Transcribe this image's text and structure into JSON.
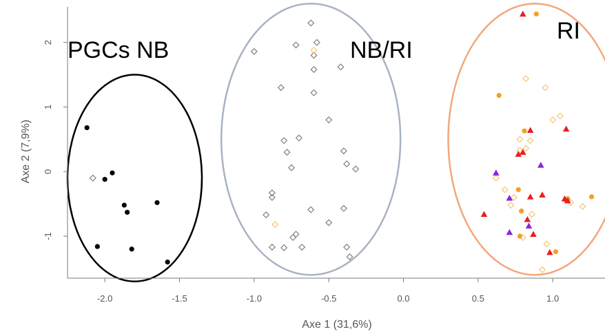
{
  "chart_data": {
    "type": "scatter",
    "xlabel": "Axe 1 (31,6%)",
    "ylabel": "Axe 2 (7,9%)",
    "xlim": [
      -2.25,
      1.35
    ],
    "ylim": [
      -1.65,
      2.55
    ],
    "x_ticks": [
      {
        "value": -2.0,
        "label": "-2.0"
      },
      {
        "value": -1.5,
        "label": "-1.5"
      },
      {
        "value": -1.0,
        "label": "-1.0"
      },
      {
        "value": -0.5,
        "label": "-0.5"
      },
      {
        "value": 0.0,
        "label": "0.0"
      },
      {
        "value": 0.5,
        "label": "0.5"
      },
      {
        "value": 1.0,
        "label": "1.0"
      }
    ],
    "y_ticks": [
      {
        "value": 2,
        "label": "2"
      },
      {
        "value": 1,
        "label": "1"
      },
      {
        "value": 0,
        "label": "0"
      },
      {
        "value": -1,
        "label": "-1"
      }
    ],
    "groups": [
      {
        "label": "PGCs NB",
        "ellipse_color": "#000000",
        "center": [
          -1.8,
          -0.1
        ],
        "radius": [
          0.45,
          1.6
        ]
      },
      {
        "label": "NB/RI",
        "ellipse_color": "#a8b2c4",
        "center": [
          -0.62,
          0.5
        ],
        "radius": [
          0.6,
          2.1
        ]
      },
      {
        "label": "RI",
        "ellipse_color": "#f2a77a",
        "center": [
          0.88,
          0.5
        ],
        "radius": [
          0.58,
          2.1
        ]
      }
    ],
    "series": [
      {
        "marker": "filled-circle",
        "color": "#000000",
        "x": [
          -2.12,
          -2.0,
          -1.95,
          -1.87,
          -1.85,
          -1.65,
          -2.05,
          -1.82,
          -1.58
        ],
        "y": [
          0.68,
          -0.12,
          -0.02,
          -0.52,
          -0.63,
          -0.48,
          -1.16,
          -1.2,
          -1.4
        ]
      },
      {
        "marker": "open-diamond",
        "color": "#888888",
        "x": [
          -2.08,
          -1.0,
          -0.62,
          -0.72,
          -0.58,
          -0.6,
          -0.6,
          -0.42,
          -0.82,
          -0.6,
          -0.5,
          -0.8,
          -0.7,
          -0.78,
          -0.4,
          -0.75,
          -0.38,
          -0.32,
          -0.88,
          -0.88,
          -0.92,
          -0.62,
          -0.4,
          -0.5,
          -0.72,
          -0.74,
          -0.88,
          -0.8,
          -0.68,
          -0.38,
          -0.36
        ],
        "y": [
          -0.1,
          1.86,
          2.3,
          1.96,
          2.0,
          1.8,
          1.58,
          1.62,
          1.3,
          1.22,
          0.8,
          0.48,
          0.52,
          0.3,
          0.32,
          0.06,
          0.12,
          0.04,
          -0.33,
          -0.4,
          -0.67,
          -0.59,
          -0.57,
          -0.79,
          -0.97,
          -1.02,
          -1.17,
          -1.18,
          -1.17,
          -1.17,
          -1.32
        ]
      },
      {
        "marker": "open-diamond",
        "color": "#f8c880",
        "x": [
          -0.6,
          -0.86,
          0.82,
          0.95,
          0.78,
          1.05,
          1.0,
          0.82,
          0.78,
          0.85,
          0.62,
          0.68,
          0.74,
          0.72,
          1.12,
          1.2,
          0.86,
          0.8,
          0.96,
          0.93
        ],
        "y": [
          1.88,
          -0.82,
          1.44,
          1.3,
          0.5,
          0.86,
          0.8,
          0.36,
          0.33,
          0.48,
          -0.1,
          -0.28,
          -0.4,
          -0.52,
          -0.48,
          -0.54,
          -0.66,
          -1.02,
          -1.12,
          -1.52
        ]
      },
      {
        "marker": "filled-circle",
        "color": "#f5a020",
        "x": [
          0.89,
          0.64,
          0.81,
          1.1,
          0.77,
          1.26,
          0.79,
          1.09,
          0.78,
          1.02
        ],
        "y": [
          2.44,
          1.18,
          0.63,
          -0.42,
          -0.28,
          -0.39,
          -0.61,
          -0.45,
          -1.0,
          -1.24
        ]
      },
      {
        "marker": "filled-triangle",
        "color": "#e82020",
        "x": [
          0.8,
          0.85,
          1.09,
          0.77,
          0.8,
          0.54,
          0.85,
          0.93,
          1.08,
          1.1,
          0.83,
          0.87,
          0.98
        ],
        "y": [
          2.44,
          0.64,
          0.66,
          0.27,
          0.3,
          -0.66,
          -0.39,
          -0.36,
          -0.42,
          -0.45,
          -0.74,
          -0.97,
          -1.25
        ]
      },
      {
        "marker": "filled-triangle",
        "color": "#8828d8",
        "x": [
          0.62,
          0.92,
          0.71,
          0.84,
          0.71
        ],
        "y": [
          -0.02,
          0.1,
          -0.41,
          -0.84,
          -0.94
        ]
      }
    ]
  }
}
